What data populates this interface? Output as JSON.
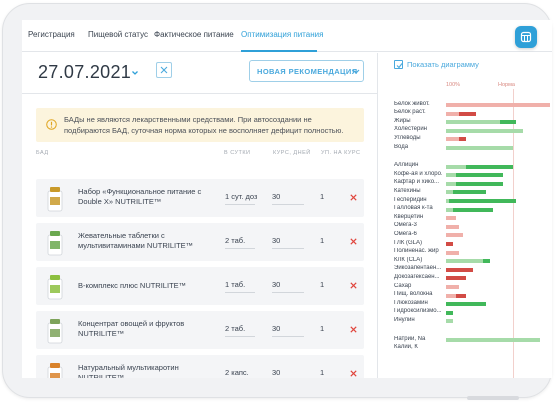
{
  "tabs": [
    {
      "label": "Регистрация"
    },
    {
      "label": "Пищевой статус"
    },
    {
      "label": "Фактическое питание"
    },
    {
      "label": "Оптимизация питания",
      "active": true
    }
  ],
  "header": {
    "date": "27.07.2021",
    "new_recommendation_label": "НОВАЯ РЕКОМЕНДАЦИЯ"
  },
  "warning": {
    "text": "БАДы не являются лекарственными средствами. При автосоздании не подбираются БАД, суточная норма которых не восполняет дефицит полностью."
  },
  "table": {
    "columns": {
      "product": "БАД",
      "per_day": "В СУТКИ",
      "course_days": "КУРС, ДНЕЙ",
      "per_course": "УП. НА КУРС"
    },
    "rows": [
      {
        "name": "Набор «Функциональное питание с Double X» NUTRILITE™",
        "per_day": "1 сут. доза",
        "course_days": "30",
        "per_course": "1"
      },
      {
        "name": "Жевательные таблетки с мультивитаминами NUTRILITE™",
        "per_day": "2 таб.",
        "course_days": "30",
        "per_course": "1"
      },
      {
        "name": "В-комплекс плюс NUTRILITE™",
        "per_day": "1 таб.",
        "course_days": "30",
        "per_course": "1"
      },
      {
        "name": "Концентрат овощей и фруктов NUTRILITE™",
        "per_day": "2 таб.",
        "course_days": "30",
        "per_course": "1"
      },
      {
        "name": "Натуральный мультикаротин NUTRILITE™",
        "per_day": "2 капс.",
        "course_days": "30",
        "per_course": "1"
      }
    ]
  },
  "chart": {
    "show_label": "Показать диаграмму",
    "scale_100_label": "100%",
    "scale_norm_label": "Норма",
    "colors": {
      "light_green": "#a6dba9",
      "green": "#41b85a",
      "light_red": "#f0b0aa",
      "red": "#d24b45",
      "norm_line": "#f2d0cc"
    }
  },
  "chart_data": {
    "type": "bar",
    "orientation": "horizontal",
    "unit": "% of norm",
    "groups": [
      {
        "items": [
          {
            "label": "Белок живот.",
            "base": 210,
            "extra": 0,
            "base_color": "light_red",
            "extra_color": "light_red"
          },
          {
            "label": "Белок раст.",
            "base": 20,
            "extra": 25,
            "base_color": "light_red",
            "extra_color": "red"
          },
          {
            "label": "Жиры",
            "base": 80,
            "extra": 25,
            "base_color": "light_green",
            "extra_color": "green"
          },
          {
            "label": "Холестерин",
            "base": 115,
            "extra": 0,
            "base_color": "light_green",
            "extra_color": "green"
          },
          {
            "label": "Углеводы",
            "base": 20,
            "extra": 10,
            "base_color": "light_red",
            "extra_color": "red"
          },
          {
            "label": "Вода",
            "base": 100,
            "extra": 0,
            "base_color": "light_green",
            "extra_color": "green"
          }
        ]
      },
      {
        "items": [
          {
            "label": "Аллицин",
            "base": 30,
            "extra": 70,
            "base_color": "light_green",
            "extra_color": "green"
          },
          {
            "label": "Кофе-ая и хлоро...",
            "base": 15,
            "extra": 70,
            "base_color": "light_green",
            "extra_color": "green"
          },
          {
            "label": "Кафтар и хико...",
            "base": 15,
            "extra": 70,
            "base_color": "light_green",
            "extra_color": "green"
          },
          {
            "label": "Катехины",
            "base": 10,
            "extra": 50,
            "base_color": "light_green",
            "extra_color": "green"
          },
          {
            "label": "Гесперидин",
            "base": 5,
            "extra": 100,
            "base_color": "light_green",
            "extra_color": "green"
          },
          {
            "label": "Галловая к-та",
            "base": 10,
            "extra": 60,
            "base_color": "light_green",
            "extra_color": "green"
          },
          {
            "label": "Кверцетин",
            "base": 15,
            "extra": 0,
            "base_color": "light_red",
            "extra_color": "red"
          },
          {
            "label": "Омега-3",
            "base": 20,
            "extra": 0,
            "base_color": "light_red",
            "extra_color": "red"
          },
          {
            "label": "Омега-6",
            "base": 25,
            "extra": 0,
            "base_color": "light_red",
            "extra_color": "red"
          },
          {
            "label": "ГЛК (GLA)",
            "base": 0,
            "extra": 10,
            "base_color": "light_red",
            "extra_color": "red"
          },
          {
            "label": "Полиненас. жир",
            "base": 20,
            "extra": 0,
            "base_color": "light_red",
            "extra_color": "red"
          },
          {
            "label": "КЛК (CLA)",
            "base": 55,
            "extra": 10,
            "base_color": "light_green",
            "extra_color": "green"
          },
          {
            "label": "Эйкозапентаен...",
            "base": 0,
            "extra": 40,
            "base_color": "light_red",
            "extra_color": "red"
          },
          {
            "label": "Докозагексаен...",
            "base": 0,
            "extra": 30,
            "base_color": "light_red",
            "extra_color": "red"
          },
          {
            "label": "Сахар",
            "base": 20,
            "extra": 0,
            "base_color": "light_red",
            "extra_color": "red"
          },
          {
            "label": "Пищ. волокна",
            "base": 15,
            "extra": 15,
            "base_color": "light_red",
            "extra_color": "red"
          },
          {
            "label": "Глюкозамин",
            "base": 0,
            "extra": 60,
            "base_color": "light_green",
            "extra_color": "green"
          },
          {
            "label": "Гидроксилизмо...",
            "base": 0,
            "extra": 10,
            "base_color": "light_green",
            "extra_color": "green"
          },
          {
            "label": "Инулин",
            "base": 10,
            "extra": 0,
            "base_color": "light_green",
            "extra_color": "green"
          }
        ]
      },
      {
        "items": [
          {
            "label": "Натрий, Na",
            "base": 140,
            "extra": 0,
            "base_color": "light_green",
            "extra_color": "green"
          },
          {
            "label": "Калий, К",
            "base": 0,
            "extra": 0,
            "base_color": "light_green",
            "extra_color": "green"
          }
        ]
      }
    ]
  }
}
